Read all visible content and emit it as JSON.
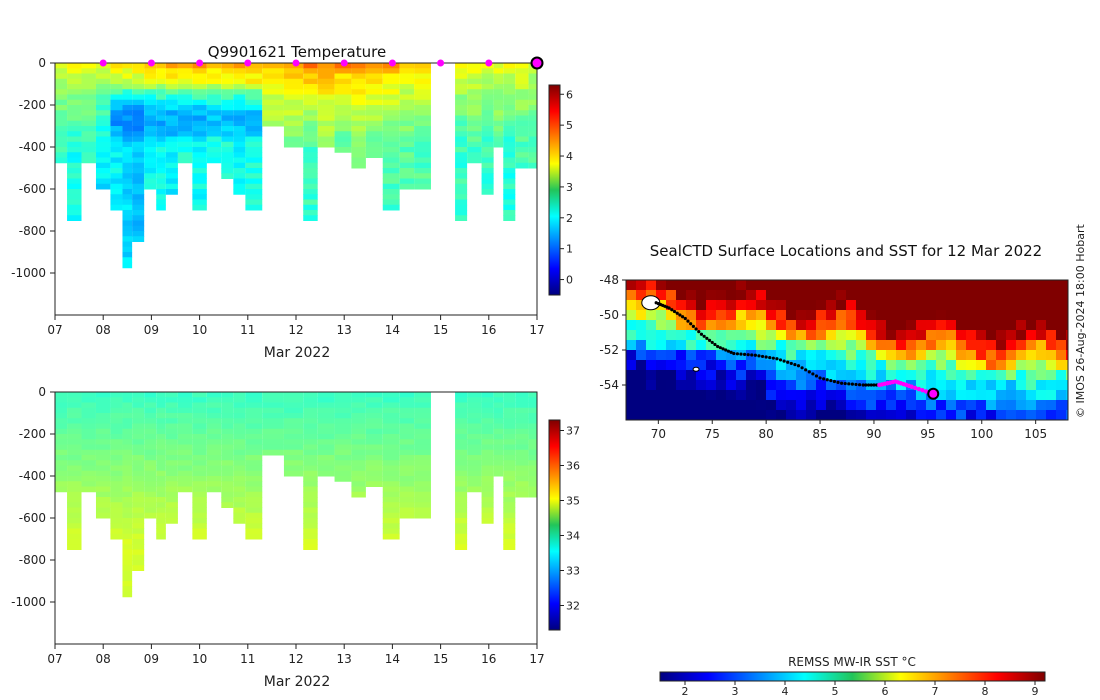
{
  "chart_data": [
    {
      "id": "temp",
      "type": "heatmap",
      "title": "Q9901621  Temperature",
      "xlabel": "Mar 2022",
      "ylabel": "",
      "xlim": [
        7,
        17
      ],
      "ylim": [
        -1200,
        0
      ],
      "x_ticks": [
        "07",
        "08",
        "09",
        "10",
        "11",
        "12",
        "13",
        "14",
        "15",
        "16",
        "17"
      ],
      "y_ticks": [
        0,
        -200,
        -400,
        -600,
        -800,
        -1000
      ],
      "colorbar": {
        "min": -0.5,
        "max": 6.3,
        "ticks": [
          0,
          1,
          2,
          3,
          4,
          5,
          6
        ],
        "colormap": "jet"
      },
      "surface_markers": [
        8,
        9,
        10,
        11,
        12,
        13,
        14,
        15,
        16
      ],
      "current_marker": 17,
      "missing_interval": [
        14.8,
        15.3
      ],
      "profiles": [
        {
          "day": 7.1,
          "maxDepth": 470,
          "surface": 3.6,
          "deep": 2.4
        },
        {
          "day": 7.4,
          "maxDepth": 740,
          "surface": 3.8,
          "deep": 2.2
        },
        {
          "day": 7.7,
          "maxDepth": 470,
          "surface": 3.5,
          "deep": 2.4
        },
        {
          "day": 8.0,
          "maxDepth": 580,
          "surface": 3.6,
          "deep": 1.9
        },
        {
          "day": 8.3,
          "maxDepth": 700,
          "surface": 3.9,
          "deep": 2.0
        },
        {
          "day": 8.5,
          "maxDepth": 960,
          "surface": 4.0,
          "deep": 1.8
        },
        {
          "day": 8.7,
          "maxDepth": 830,
          "surface": 4.1,
          "deep": 1.7
        },
        {
          "day": 9.0,
          "maxDepth": 580,
          "surface": 4.1,
          "deep": 2.1
        },
        {
          "day": 9.2,
          "maxDepth": 700,
          "surface": 4.2,
          "deep": 2.1
        },
        {
          "day": 9.4,
          "maxDepth": 620,
          "surface": 4.3,
          "deep": 2.0
        },
        {
          "day": 9.7,
          "maxDepth": 460,
          "surface": 4.2,
          "deep": 2.2
        },
        {
          "day": 10.0,
          "maxDepth": 700,
          "surface": 4.3,
          "deep": 2.1
        },
        {
          "day": 10.3,
          "maxDepth": 460,
          "surface": 4.2,
          "deep": 2.3
        },
        {
          "day": 10.6,
          "maxDepth": 550,
          "surface": 4.1,
          "deep": 2.3
        },
        {
          "day": 10.8,
          "maxDepth": 620,
          "surface": 4.3,
          "deep": 2.1
        },
        {
          "day": 11.1,
          "maxDepth": 700,
          "surface": 4.4,
          "deep": 2.2
        },
        {
          "day": 11.5,
          "maxDepth": 300,
          "surface": 4.0,
          "deep": 2.9
        },
        {
          "day": 12.0,
          "maxDepth": 400,
          "surface": 4.5,
          "deep": 2.7
        },
        {
          "day": 12.3,
          "maxDepth": 730,
          "surface": 4.7,
          "deep": 2.4
        },
        {
          "day": 12.6,
          "maxDepth": 400,
          "surface": 4.6,
          "deep": 2.8
        },
        {
          "day": 13.0,
          "maxDepth": 420,
          "surface": 4.5,
          "deep": 2.6
        },
        {
          "day": 13.3,
          "maxDepth": 500,
          "surface": 4.6,
          "deep": 2.7
        },
        {
          "day": 13.6,
          "maxDepth": 450,
          "surface": 4.5,
          "deep": 2.7
        },
        {
          "day": 14.0,
          "maxDepth": 700,
          "surface": 4.4,
          "deep": 2.5
        },
        {
          "day": 14.3,
          "maxDepth": 580,
          "surface": 4.0,
          "deep": 2.6
        },
        {
          "day": 14.6,
          "maxDepth": 580,
          "surface": 4.2,
          "deep": 2.6
        },
        {
          "day": 15.4,
          "maxDepth": 730,
          "surface": 3.7,
          "deep": 2.4
        },
        {
          "day": 15.7,
          "maxDepth": 460,
          "surface": 3.8,
          "deep": 2.5
        },
        {
          "day": 16.0,
          "maxDepth": 620,
          "surface": 3.5,
          "deep": 2.4
        },
        {
          "day": 16.2,
          "maxDepth": 400,
          "surface": 3.6,
          "deep": 2.6
        },
        {
          "day": 16.4,
          "maxDepth": 740,
          "surface": 3.6,
          "deep": 2.3
        },
        {
          "day": 16.7,
          "maxDepth": 500,
          "surface": 3.7,
          "deep": 2.5
        },
        {
          "day": 16.95,
          "maxDepth": 500,
          "surface": 3.5,
          "deep": 2.5
        }
      ]
    },
    {
      "id": "salt",
      "type": "heatmap",
      "title": "",
      "xlabel": "Mar 2022",
      "ylabel": "",
      "xlim": [
        7,
        17
      ],
      "ylim": [
        -1200,
        0
      ],
      "x_ticks": [
        "07",
        "08",
        "09",
        "10",
        "11",
        "12",
        "13",
        "14",
        "15",
        "16",
        "17"
      ],
      "y_ticks": [
        0,
        -200,
        -400,
        -600,
        -800,
        -1000
      ],
      "colorbar": {
        "min": 31.3,
        "max": 37.3,
        "ticks": [
          32,
          33,
          34,
          35,
          36,
          37
        ],
        "colormap": "jet"
      },
      "missing_interval": [
        14.8,
        15.3
      ],
      "surface_value": 33.9,
      "deep_value": 34.8
    },
    {
      "id": "map",
      "type": "heatmap",
      "title": "SealCTD Surface Locations and SST for 12 Mar 2022",
      "xlim": [
        67,
        108
      ],
      "ylim": [
        -56,
        -48
      ],
      "x_ticks": [
        70,
        75,
        80,
        85,
        90,
        95,
        100,
        105
      ],
      "y_ticks": [
        -48,
        -50,
        -52,
        -54
      ],
      "colorbar": {
        "label": "REMSS MW-IR SST °C",
        "min": 1.5,
        "max": 9.2,
        "ticks": [
          2,
          3,
          4,
          5,
          6,
          7,
          8,
          9
        ],
        "colormap": "jet"
      },
      "track": [
        [
          69.8,
          -49.3
        ],
        [
          71.0,
          -49.6
        ],
        [
          72.5,
          -50.2
        ],
        [
          74.0,
          -51.1
        ],
        [
          75.5,
          -51.8
        ],
        [
          77.0,
          -52.2
        ],
        [
          79.0,
          -52.3
        ],
        [
          81.0,
          -52.5
        ],
        [
          83.0,
          -52.9
        ],
        [
          85.0,
          -53.6
        ],
        [
          87.0,
          -53.9
        ],
        [
          89.0,
          -54.0
        ],
        [
          90.5,
          -54.0
        ],
        [
          92.0,
          -53.8
        ],
        [
          93.5,
          -54.1
        ],
        [
          95.5,
          -54.5
        ]
      ],
      "recent_track_start_index": 12,
      "current_position": [
        95.5,
        -54.5
      ],
      "sst_warm_front_lat": -50.5
    }
  ],
  "copyright": "© IMOS 26-Aug-2024 18:00 Hobart"
}
